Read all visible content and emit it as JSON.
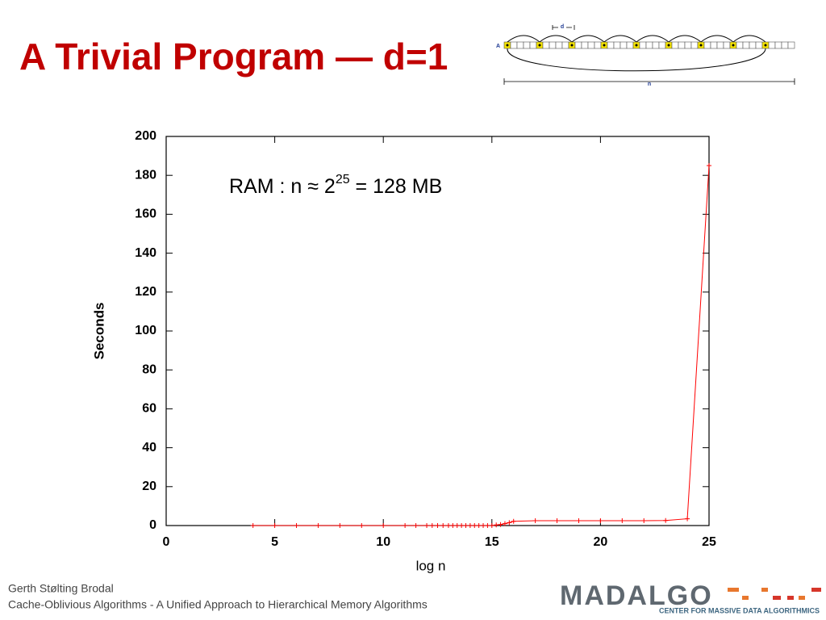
{
  "header": {
    "title": "A Trivial Program — d=1"
  },
  "diagram": {
    "array_label": "A",
    "step_label": "d",
    "length_label": "n"
  },
  "chart_data": {
    "type": "line",
    "xlabel": "log n",
    "ylabel": "Seconds",
    "annotation": {
      "text": "RAM : n ≈  2",
      "exponent": "25",
      "rest": " = 128 MB"
    },
    "x": [
      4,
      5,
      6,
      7,
      8,
      9,
      10,
      11,
      11.5,
      12,
      12.25,
      12.5,
      12.75,
      13,
      13.2,
      13.4,
      13.6,
      13.8,
      14,
      14.2,
      14.4,
      14.6,
      14.8,
      15,
      15.2,
      15.4,
      15.6,
      15.8,
      16,
      17,
      18,
      19,
      20,
      21,
      22,
      23,
      24,
      25
    ],
    "values": [
      0,
      0,
      0,
      0,
      0,
      0,
      0,
      0,
      0,
      0,
      0,
      0,
      0,
      0,
      0,
      0,
      0,
      0,
      0,
      0,
      0,
      0,
      0,
      0,
      0.3,
      0.5,
      1,
      1.5,
      2.2,
      2.5,
      2.5,
      2.5,
      2.5,
      2.5,
      2.5,
      2.6,
      3.5,
      185
    ],
    "color": "#ff0000",
    "xlim": [
      0,
      25
    ],
    "xticks": [
      0,
      5,
      10,
      15,
      20,
      25
    ],
    "ylim": [
      0,
      200
    ],
    "yticks": [
      0,
      20,
      40,
      60,
      80,
      100,
      120,
      140,
      160,
      180,
      200
    ]
  },
  "footer": {
    "author": "Gerth Stølting Brodal",
    "course": "Cache-Oblivious Algorithms - A Unified Approach to Hierarchical Memory Algorithms"
  },
  "logo": {
    "name": "MADALGO",
    "tagline": "CENTER FOR MASSIVE DATA ALGORITHMICS"
  }
}
